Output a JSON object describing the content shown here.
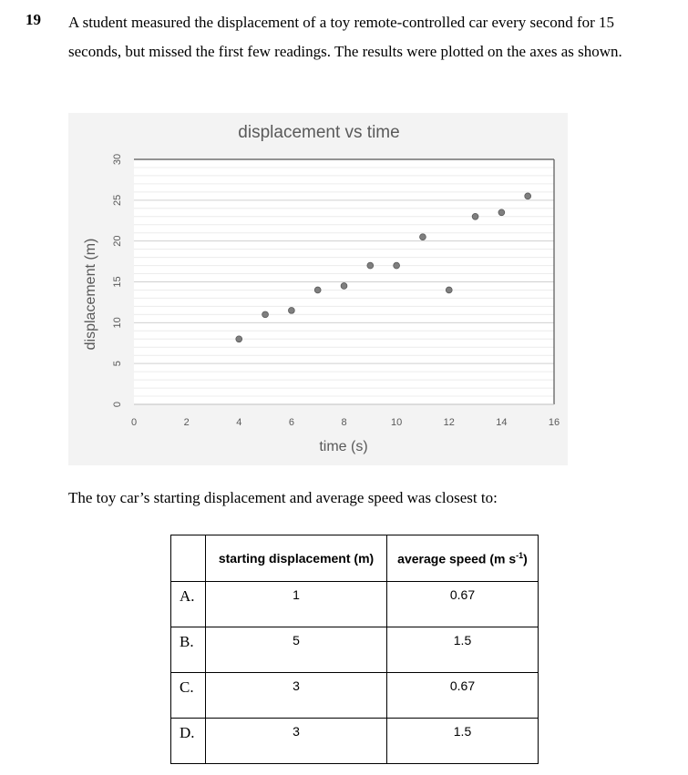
{
  "question": {
    "number": "19",
    "text": "A student measured the displacement of a toy remote-controlled car every second for 15 seconds, but missed the first few readings. The results were plotted on the axes as shown.",
    "prompt": "The toy car’s starting displacement and average speed was closest to:"
  },
  "chart_data": {
    "type": "scatter",
    "title": "displacement  vs time",
    "xlabel": "time (s)",
    "ylabel": "displacement (m)",
    "xlim": [
      0,
      16
    ],
    "ylim": [
      0,
      30
    ],
    "xticks": [
      "0",
      "2",
      "4",
      "6",
      "8",
      "10",
      "12",
      "14",
      "16"
    ],
    "yticks": [
      "0",
      "5",
      "10",
      "15",
      "20",
      "25",
      "30"
    ],
    "grid": true,
    "colors": {
      "point": "#7f7f7f",
      "point_stroke": "#595959",
      "background": "#f3f3f3",
      "plot_bg": "#ffffff"
    },
    "series": [
      {
        "x": [
          4,
          5,
          6,
          7,
          8,
          9,
          10,
          11,
          12,
          13,
          14,
          15
        ],
        "y": [
          8,
          11,
          11.5,
          14,
          14.5,
          17,
          17,
          20.5,
          14,
          23,
          23.5,
          25.5
        ]
      }
    ]
  },
  "table": {
    "headers": [
      "",
      "starting displacement (m)",
      "average speed (m s⁻¹)"
    ],
    "header_main": "average speed (m s",
    "header_sup": "-1",
    "header_tail": ")",
    "rows": [
      {
        "option": "A.",
        "start": "1",
        "speed": "0.67"
      },
      {
        "option": "B.",
        "start": "5",
        "speed": "1.5"
      },
      {
        "option": "C.",
        "start": "3",
        "speed": "0.67"
      },
      {
        "option": "D.",
        "start": "3",
        "speed": "1.5"
      }
    ]
  }
}
